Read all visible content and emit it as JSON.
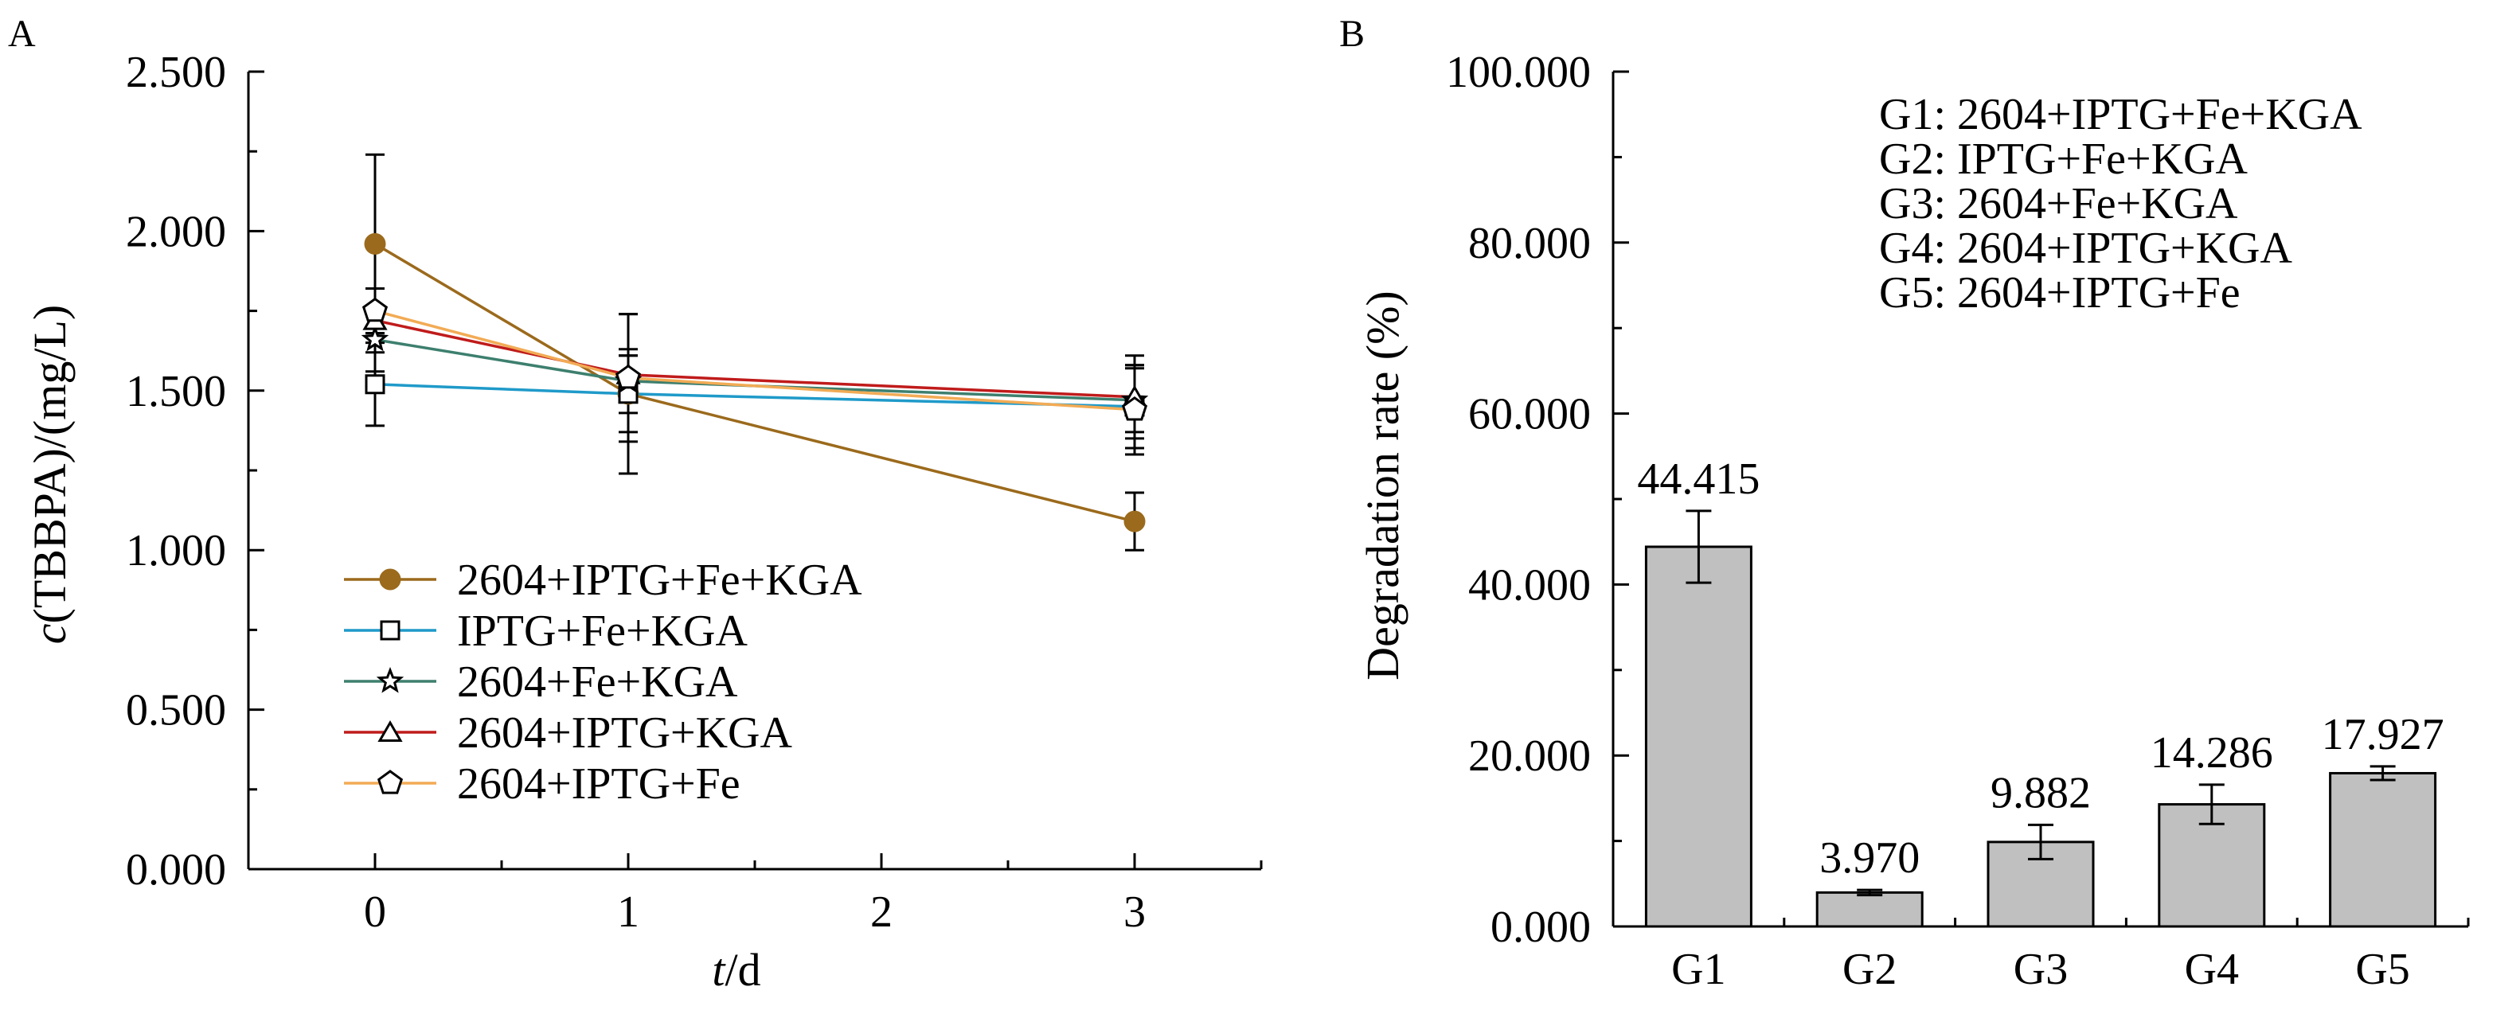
{
  "chart_data": [
    {
      "panel": "A",
      "type": "line",
      "x": [
        0,
        1,
        3
      ],
      "xlabel_italic": "t",
      "xlabel_rest": "/d",
      "ylabel_italic": "c",
      "ylabel_rest": "(TBBPA)/(mg/L)",
      "xlim": [
        -0.5,
        3.5
      ],
      "ylim": [
        0,
        2.5
      ],
      "xticks": [
        "0",
        "1",
        "2",
        "3"
      ],
      "yticks": [
        "0.000",
        "0.500",
        "1.000",
        "1.500",
        "2.000",
        "2.500"
      ],
      "legend_position": "bottom-left",
      "grid": false,
      "series": [
        {
          "name": "2604+IPTG+Fe+KGA",
          "color": "#9b6a1c",
          "marker": "filled-circle",
          "values": [
            1.96,
            1.49,
            1.09
          ],
          "errors": [
            0.28,
            0.25,
            0.09
          ]
        },
        {
          "name": "IPTG+Fe+KGA",
          "color": "#1f9ac9",
          "marker": "open-square",
          "values": [
            1.52,
            1.49,
            1.45
          ],
          "errors": [
            0.13,
            0.12,
            0.13
          ]
        },
        {
          "name": "2604+Fe+KGA",
          "color": "#3d7f6e",
          "marker": "open-star",
          "values": [
            1.66,
            1.53,
            1.47
          ],
          "errors": [
            0.1,
            0.1,
            0.1
          ]
        },
        {
          "name": "2604+IPTG+KGA",
          "color": "#c01b1b",
          "marker": "open-triangle",
          "values": [
            1.72,
            1.55,
            1.48
          ],
          "errors": [
            0.1,
            0.06,
            0.13
          ]
        },
        {
          "name": "2604+IPTG+Fe",
          "color": "#f2ab55",
          "marker": "open-pentagon",
          "values": [
            1.75,
            1.54,
            1.44
          ],
          "errors": [
            0.07,
            0.2,
            0.14
          ]
        }
      ]
    },
    {
      "panel": "B",
      "type": "bar",
      "categories": [
        "G1",
        "G2",
        "G3",
        "G4",
        "G5"
      ],
      "values": [
        44.415,
        3.97,
        9.882,
        14.286,
        17.927
      ],
      "value_labels": [
        "44.415",
        "3.970",
        "9.882",
        "14.286",
        "17.927"
      ],
      "errors": [
        4.2,
        0.3,
        2.0,
        2.3,
        0.8
      ],
      "bar_color": "#c0c0c0",
      "ylabel": "Degradation rate (%)",
      "ylim": [
        0,
        100
      ],
      "yticks": [
        "0.000",
        "20.000",
        "40.000",
        "60.000",
        "80.000",
        "100.000"
      ],
      "legend_position": "top-right",
      "grid": false,
      "legend_lines": [
        "G1: 2604+IPTG+Fe+KGA",
        "G2: IPTG+Fe+KGA",
        "G3: 2604+Fe+KGA",
        "G4: 2604+IPTG+KGA",
        "G5: 2604+IPTG+Fe"
      ]
    }
  ]
}
